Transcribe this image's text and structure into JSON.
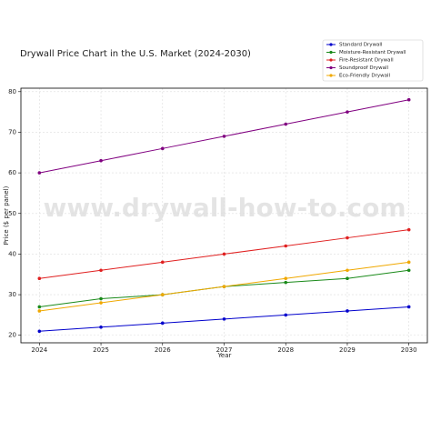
{
  "chart_data": {
    "type": "line",
    "title": "Drywall Price Chart in the U.S. Market (2024-2030)",
    "watermark": "www.drywall-how-to.com",
    "x_label": "Year",
    "y_label": "Price ($ per panel)",
    "x": [
      2024,
      2025,
      2026,
      2027,
      2028,
      2029,
      2030
    ],
    "xlim": [
      2023.7,
      2030.3
    ],
    "xticks": [
      2024,
      2025,
      2026,
      2027,
      2028,
      2029,
      2030
    ],
    "ylim": [
      18.15,
      80.85
    ],
    "yticks": [
      20,
      30,
      40,
      50,
      60,
      70,
      80
    ],
    "grid": true,
    "legend": "upper right",
    "series": [
      {
        "name": "Standard Drywall",
        "color": "#0000cc",
        "values": [
          21,
          22,
          23,
          24,
          25,
          26,
          27
        ]
      },
      {
        "name": "Moisture-Resistant Drywall",
        "color": "#1a8a1a",
        "values": [
          27,
          29,
          30,
          32,
          33,
          34,
          36
        ]
      },
      {
        "name": "Fire-Resistant Drywall",
        "color": "#e02020",
        "values": [
          34,
          36,
          38,
          40,
          42,
          44,
          46
        ]
      },
      {
        "name": "Soundproof Drywall",
        "color": "#800080",
        "values": [
          60,
          63,
          66,
          69,
          72,
          75,
          78
        ]
      },
      {
        "name": "Eco-Friendly Drywall",
        "color": "#f0a800",
        "values": [
          26,
          28,
          30,
          32,
          34,
          36,
          38
        ]
      }
    ]
  }
}
